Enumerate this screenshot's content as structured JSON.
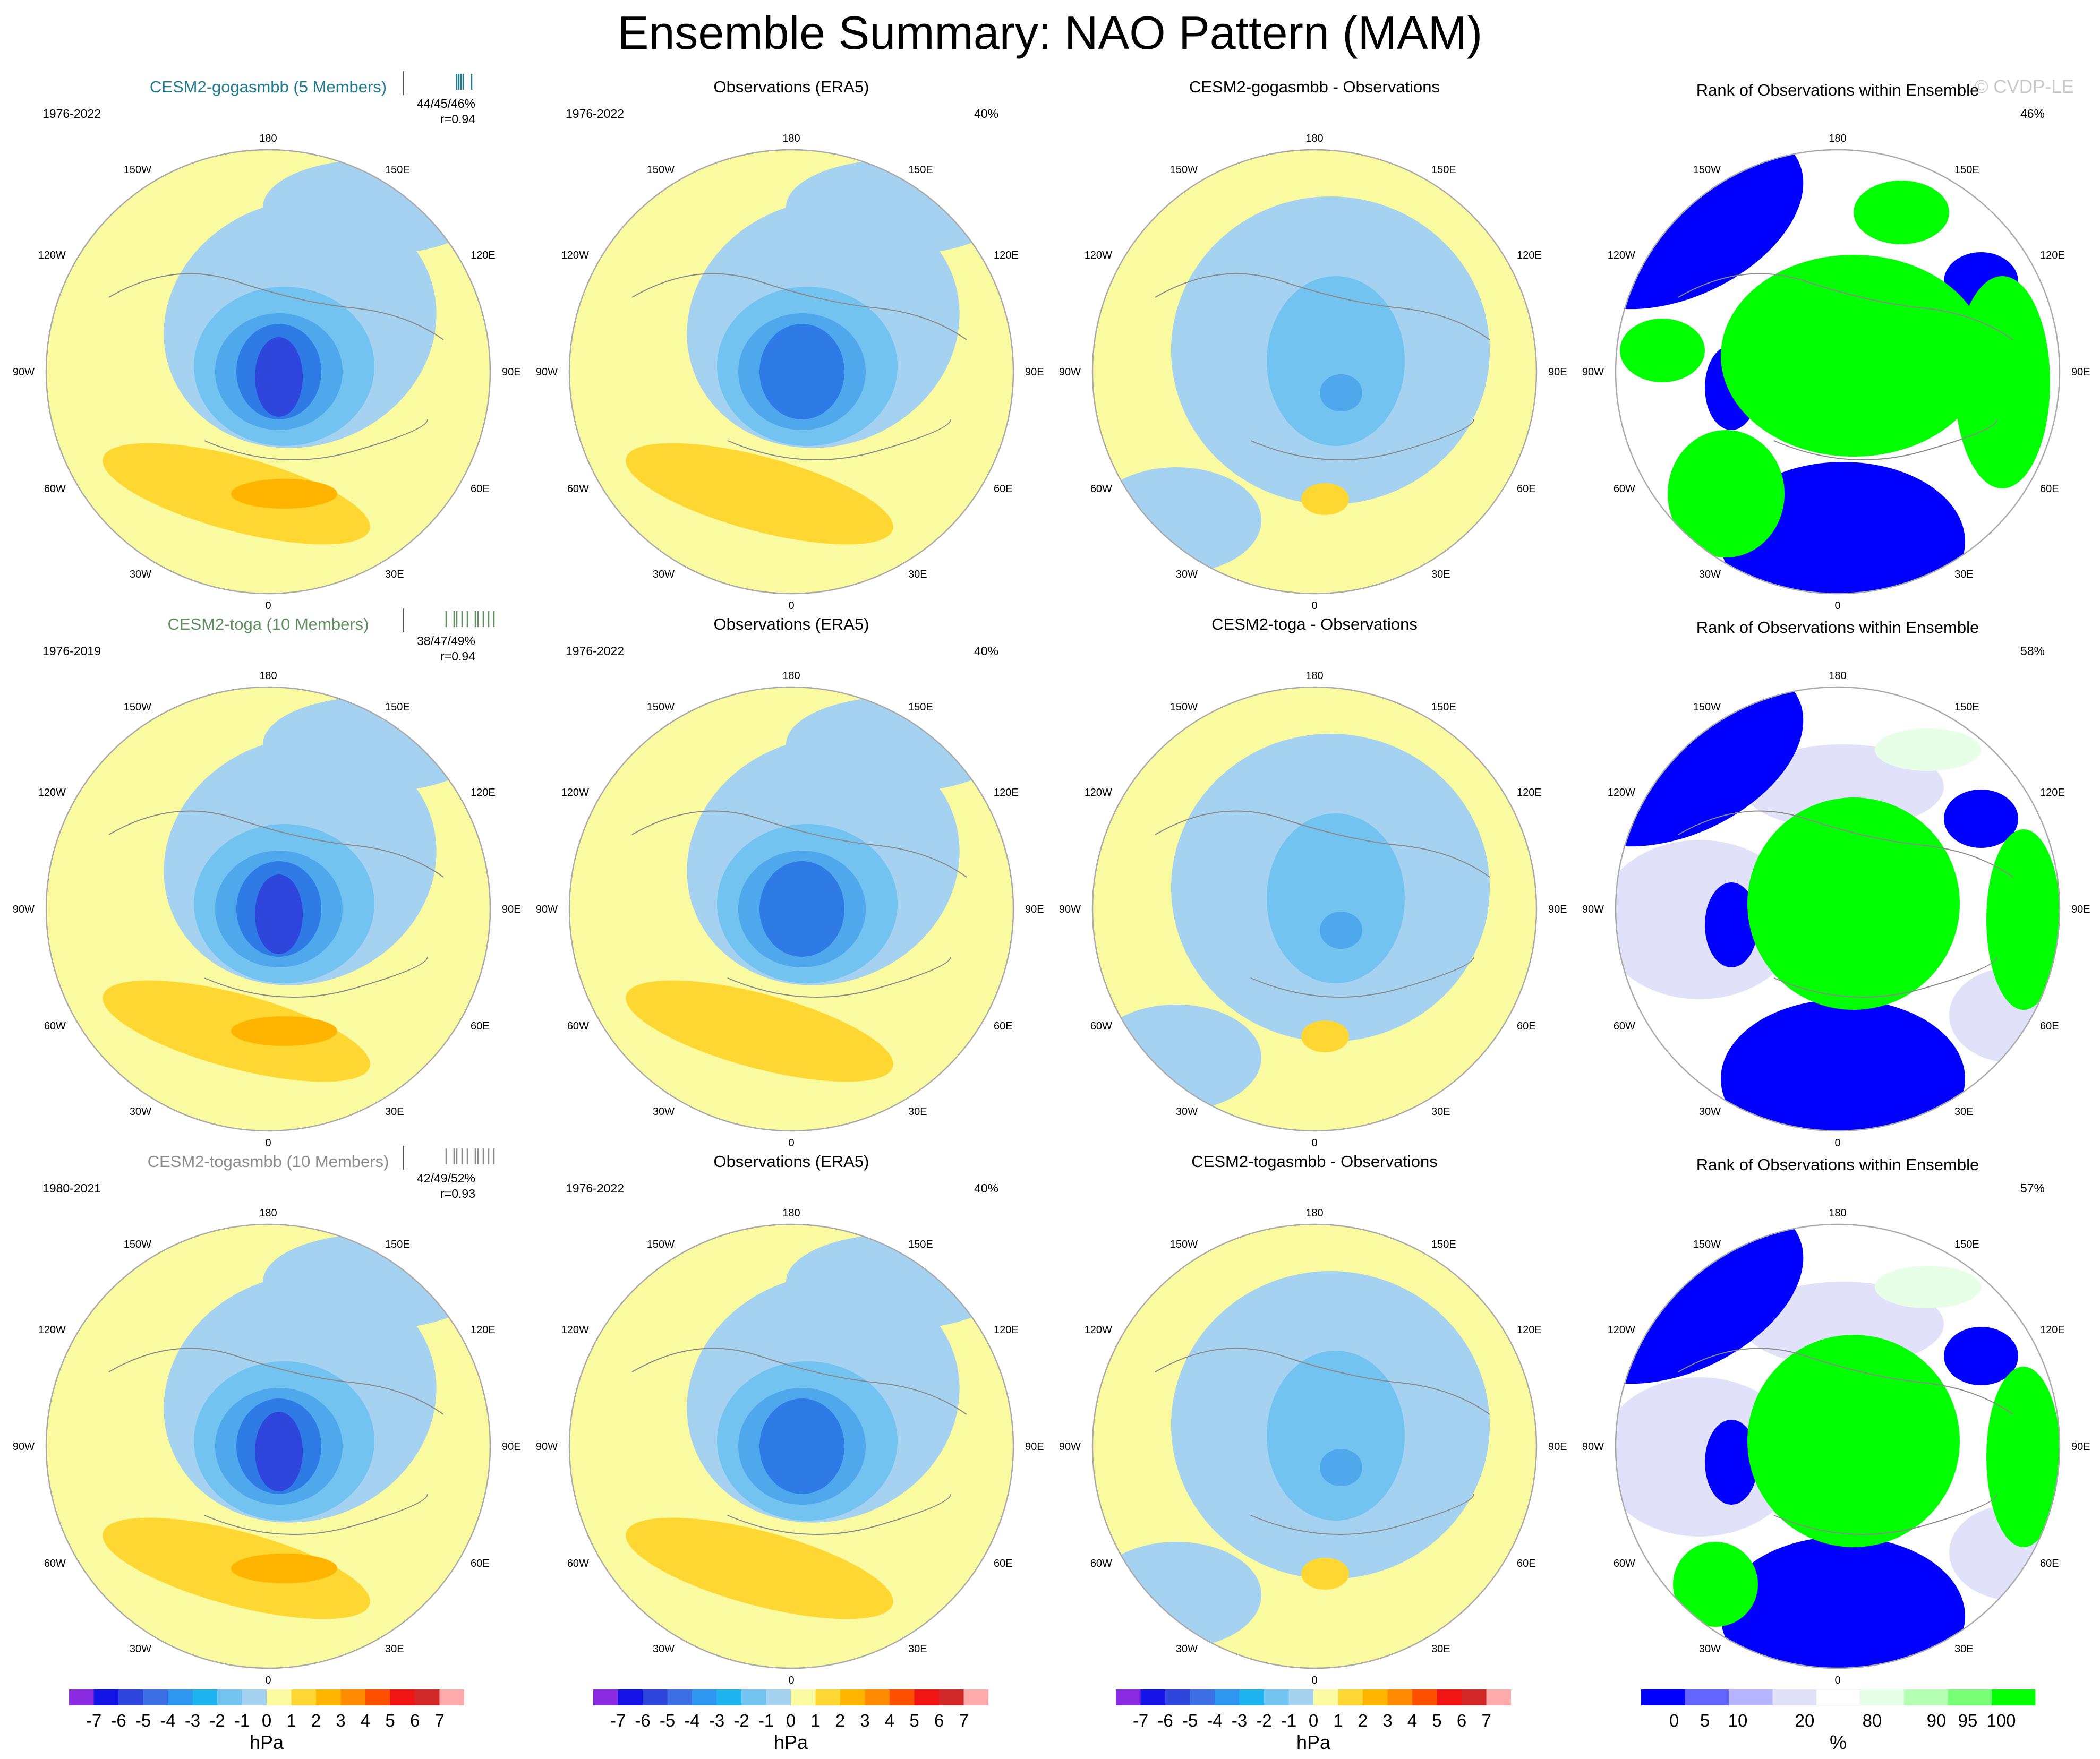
{
  "page": {
    "title": "Ensemble Summary: NAO Pattern (MAM)",
    "watermark": "© CVDP-LE"
  },
  "rows": [
    {
      "model_title": "CESM2-gogasmbb (5 Members)",
      "model_color": "#1f7a8c",
      "model_years": "1976-2022",
      "model_stats_pct": "44/45/46%",
      "model_stats_r": "r=0.94",
      "obs_title": "Observations (ERA5)",
      "obs_years": "1976-2022",
      "obs_pct": "40%",
      "diff_title": "CESM2-gogasmbb - Observations",
      "rank_title": "Rank of Observations within Ensemble",
      "rank_pct": "46%"
    },
    {
      "model_title": "CESM2-toga (10 Members)",
      "model_color": "#5f8f5f",
      "model_years": "1976-2019",
      "model_stats_pct": "38/47/49%",
      "model_stats_r": "r=0.94",
      "obs_title": "Observations (ERA5)",
      "obs_years": "1976-2022",
      "obs_pct": "40%",
      "diff_title": "CESM2-toga - Observations",
      "rank_title": "Rank of Observations within Ensemble",
      "rank_pct": "58%"
    },
    {
      "model_title": "CESM2-togasmbb (10 Members)",
      "model_color": "#8c8c8c",
      "model_years": "1980-2021",
      "model_stats_pct": "42/49/52%",
      "model_stats_r": "r=0.93",
      "obs_title": "Observations (ERA5)",
      "obs_years": "1976-2022",
      "obs_pct": "40%",
      "diff_title": "CESM2-togasmbb - Observations",
      "rank_title": "Rank of Observations within Ensemble",
      "rank_pct": "57%"
    }
  ],
  "lon_labels": [
    "180",
    "150E",
    "120E",
    "90E",
    "60E",
    "30E",
    "0",
    "30W",
    "60W",
    "90W",
    "120W",
    "150W"
  ],
  "colorbar_hpa": {
    "unit": "hPa",
    "ticks": [
      "-7",
      "-6",
      "-5",
      "-4",
      "-3",
      "-2",
      "-1",
      "0",
      "1",
      "2",
      "3",
      "4",
      "5",
      "6",
      "7"
    ],
    "colors": [
      "#8a2be2",
      "#1414e6",
      "#2e46dc",
      "#3c6ee6",
      "#2d96f0",
      "#1eb4f0",
      "#73c3f0",
      "#a5d2f0",
      "#fafaa0",
      "#ffd732",
      "#ffb400",
      "#ff8c00",
      "#ff5000",
      "#f01414",
      "#d22828",
      "#ffaaaa"
    ]
  },
  "colorbar_rank": {
    "unit": "%",
    "ticks": [
      "0",
      "5",
      "10",
      "20",
      "80",
      "90",
      "95",
      "100"
    ],
    "colors": [
      "#0000ff",
      "#6464ff",
      "#b4b4ff",
      "#e1e1fa",
      "#ffffff",
      "#e6ffe6",
      "#b4ffb4",
      "#78ff78",
      "#00ff00"
    ]
  },
  "map_colors": {
    "yellow": "#fafaa0",
    "lightblue": "#a5d2f0",
    "midblue": "#73c3f0",
    "blue2": "#4fa8ec",
    "blue3": "#2e7be6",
    "deepblue": "#2e46dc",
    "gold": "#ffd732",
    "orange": "#ffb400",
    "rank_blue": "#0000ff",
    "rank_green": "#00ff00",
    "rank_lav": "#e1e1fa",
    "rank_mint": "#e6ffe6"
  }
}
